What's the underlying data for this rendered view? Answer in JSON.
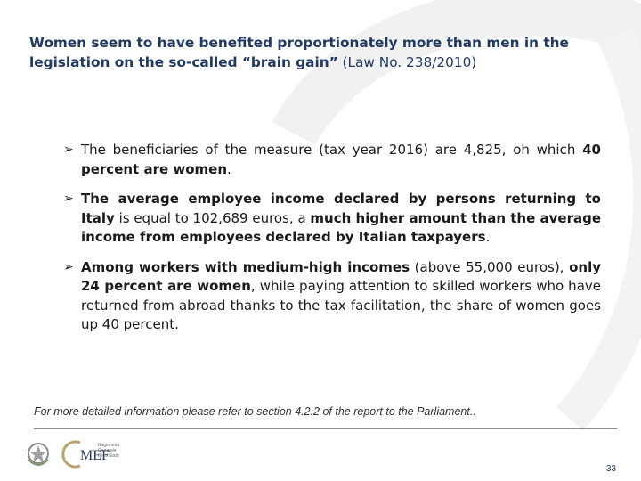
{
  "slide": {
    "title_bold": "Women seem to have benefited proportionately more than men in the legislation on the so-called “brain gain”",
    "title_normal": " (Law No. 238/2010)",
    "bullets": [
      {
        "p1": "The beneficiaries of the measure (tax year 2016) are 4,825, oh which ",
        "b1": "40 percent are women",
        "p2": "."
      },
      {
        "b1": "The average employee income declared by persons returning to Italy",
        "p1": " is equal to 102,689 euros, a ",
        "b2": "much higher amount than the average income from employees declared by Italian taxpayers",
        "p2": "."
      },
      {
        "b1": "Among workers with medium-high incomes",
        "p1": " (above 55,000 euros), ",
        "b2": "only 24 percent are women",
        "p2": ", while paying attention to skilled workers who have returned from abroad thanks to the tax  facilitation, the share of women goes up 40 percent."
      }
    ],
    "footnote": "For more detailed information please refer to section 4.2.2 of the report to the Parliament..",
    "logo": {
      "name": "MEF",
      "subtitle_lines": [
        "Ragioneria",
        "Generale",
        "dello Stato"
      ]
    },
    "page_number": "33"
  },
  "colors": {
    "title": "#1f3864",
    "accent_arc": "#f0f0f0",
    "gold": "#b8a36a"
  },
  "icons": {
    "bullet": "arrow-bullet-icon",
    "emblem": "italian-republic-emblem-icon"
  }
}
